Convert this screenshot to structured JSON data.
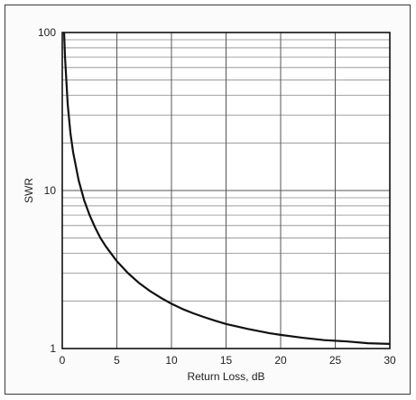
{
  "chart_data": {
    "type": "line",
    "title": "",
    "xlabel": "Return Loss, dB",
    "ylabel": "SWR",
    "xlim": [
      0,
      30
    ],
    "ylim": [
      1,
      100
    ],
    "yscale": "log",
    "grid": true,
    "legend": "none",
    "x_ticks": [
      0,
      5,
      10,
      15,
      20,
      25,
      30
    ],
    "x_tick_labels": [
      "0",
      "5",
      "10",
      "15",
      "20",
      "25",
      "30"
    ],
    "y_ticks": [
      1,
      10,
      100
    ],
    "y_tick_labels": [
      "1",
      "10",
      "100"
    ],
    "series": [
      {
        "x": [
          0.17,
          0.25,
          0.5,
          0.75,
          1,
          1.5,
          2,
          2.5,
          3,
          3.5,
          4,
          5,
          6,
          7,
          8,
          9,
          10,
          11,
          12,
          13,
          14,
          15,
          16,
          17,
          18,
          19,
          20,
          22,
          24,
          26,
          28,
          30
        ],
        "y": [
          100,
          70,
          35,
          23,
          17.4,
          11.6,
          8.7,
          7.0,
          5.85,
          5.0,
          4.42,
          3.57,
          3.01,
          2.61,
          2.32,
          2.1,
          1.92,
          1.78,
          1.67,
          1.58,
          1.5,
          1.43,
          1.38,
          1.33,
          1.29,
          1.25,
          1.22,
          1.17,
          1.13,
          1.11,
          1.08,
          1.07
        ],
        "color": "#111111"
      }
    ],
    "colors": {
      "line": "#111111",
      "major_grid": "#555555",
      "minor_grid": "#8a8a8a",
      "axis": "#111111",
      "plot_background": "#ffffff"
    }
  }
}
